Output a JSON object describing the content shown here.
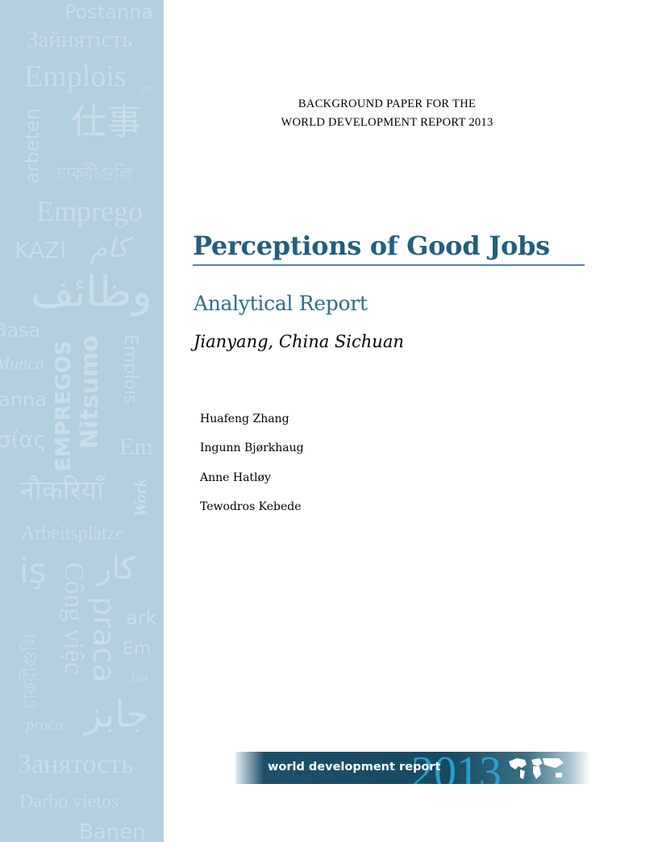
{
  "sidebar": {
    "watermark_words": [
      "Postanna",
      "Зайнятість",
      "Emplois",
      "চাক",
      "arbeten",
      "仕事",
      "চাকরীগুলি",
      "Emprego",
      "KAZI",
      "کام",
      "وظائف",
      "Basa",
      "Munca",
      "EMPREGOS",
      "Nitsumo",
      "Emplois",
      "anna",
      "σίας",
      "Em",
      "नौकरियाँ",
      "Work",
      "Arbeitsplätze",
      "iş",
      "Công việc",
      "کار",
      "praca",
      "ark",
      "Em",
      "Зан",
      "চাকরীগুলি",
      "praca",
      "جابز",
      "Занятость",
      "Darbo vietos",
      "Banen"
    ]
  },
  "header": {
    "line1": "BACKGROUND PAPER FOR THE",
    "line2": "WORLD DEVELOPMENT REPORT 2013"
  },
  "title": "Perceptions of Good Jobs",
  "subtitle": "Analytical Report",
  "location": "Jianyang, China Sichuan",
  "authors": [
    "Huafeng Zhang",
    "Ingunn Bjørkhaug",
    "Anne Hatløy",
    "Tewodros Kebede"
  ],
  "banner": {
    "label": "world development report",
    "year": "2013"
  },
  "colors": {
    "sidebar": "#b4cfdd",
    "title": "#215f7e",
    "rule": "#4f81bd",
    "banner_dark": "#174a60",
    "banner_year": "#2aa6d8"
  }
}
